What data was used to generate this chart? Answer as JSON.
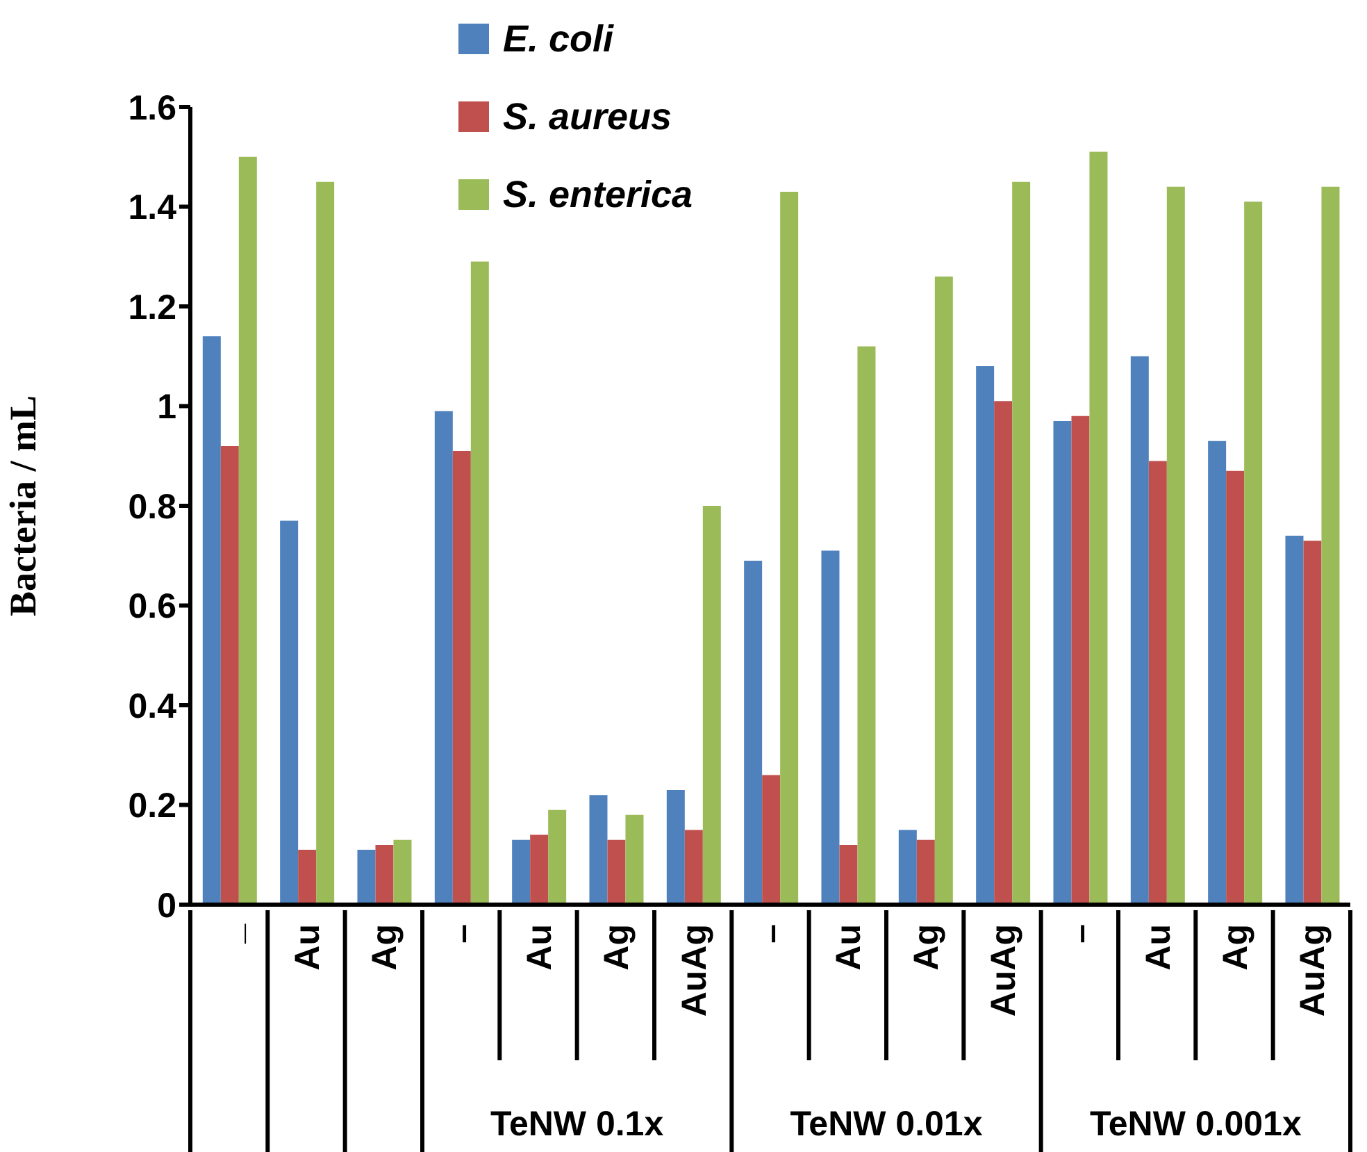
{
  "chart_data": {
    "type": "bar",
    "ylabel": "Bacteria / mL",
    "categories": [
      "_",
      "Au",
      "Ag",
      "–",
      "Au",
      "Ag",
      "AuAg",
      "–",
      "Au",
      "Ag",
      "AuAg",
      "–",
      "Au",
      "Ag",
      "AuAg"
    ],
    "annotations": [
      "TeNW 0.1x",
      "TeNW 0.01x",
      "TeNW 0.001x"
    ],
    "series": [
      {
        "name": "E. coli",
        "color": "#4f81bd",
        "values": [
          1.14,
          0.77,
          0.11,
          0.99,
          0.13,
          0.22,
          0.23,
          0.69,
          0.71,
          0.15,
          1.08,
          0.97,
          1.1,
          0.93,
          0.74
        ]
      },
      {
        "name": "S. aureus",
        "color": "#c0504d",
        "values": [
          0.92,
          0.11,
          0.12,
          0.91,
          0.14,
          0.13,
          0.15,
          0.26,
          0.12,
          0.13,
          1.01,
          0.98,
          0.89,
          0.87,
          0.73
        ]
      },
      {
        "name": "S. enterica",
        "color": "#9bbb59",
        "values": [
          1.5,
          1.45,
          0.13,
          1.29,
          0.19,
          0.18,
          0.8,
          1.43,
          1.12,
          1.26,
          1.45,
          1.51,
          1.44,
          1.41,
          1.44
        ]
      }
    ],
    "ylim": [
      0,
      1.6
    ],
    "yticks": [
      0,
      0.2,
      0.4,
      0.6,
      0.8,
      1,
      1.2,
      1.4,
      1.6
    ],
    "grid": false,
    "legend": "top"
  }
}
